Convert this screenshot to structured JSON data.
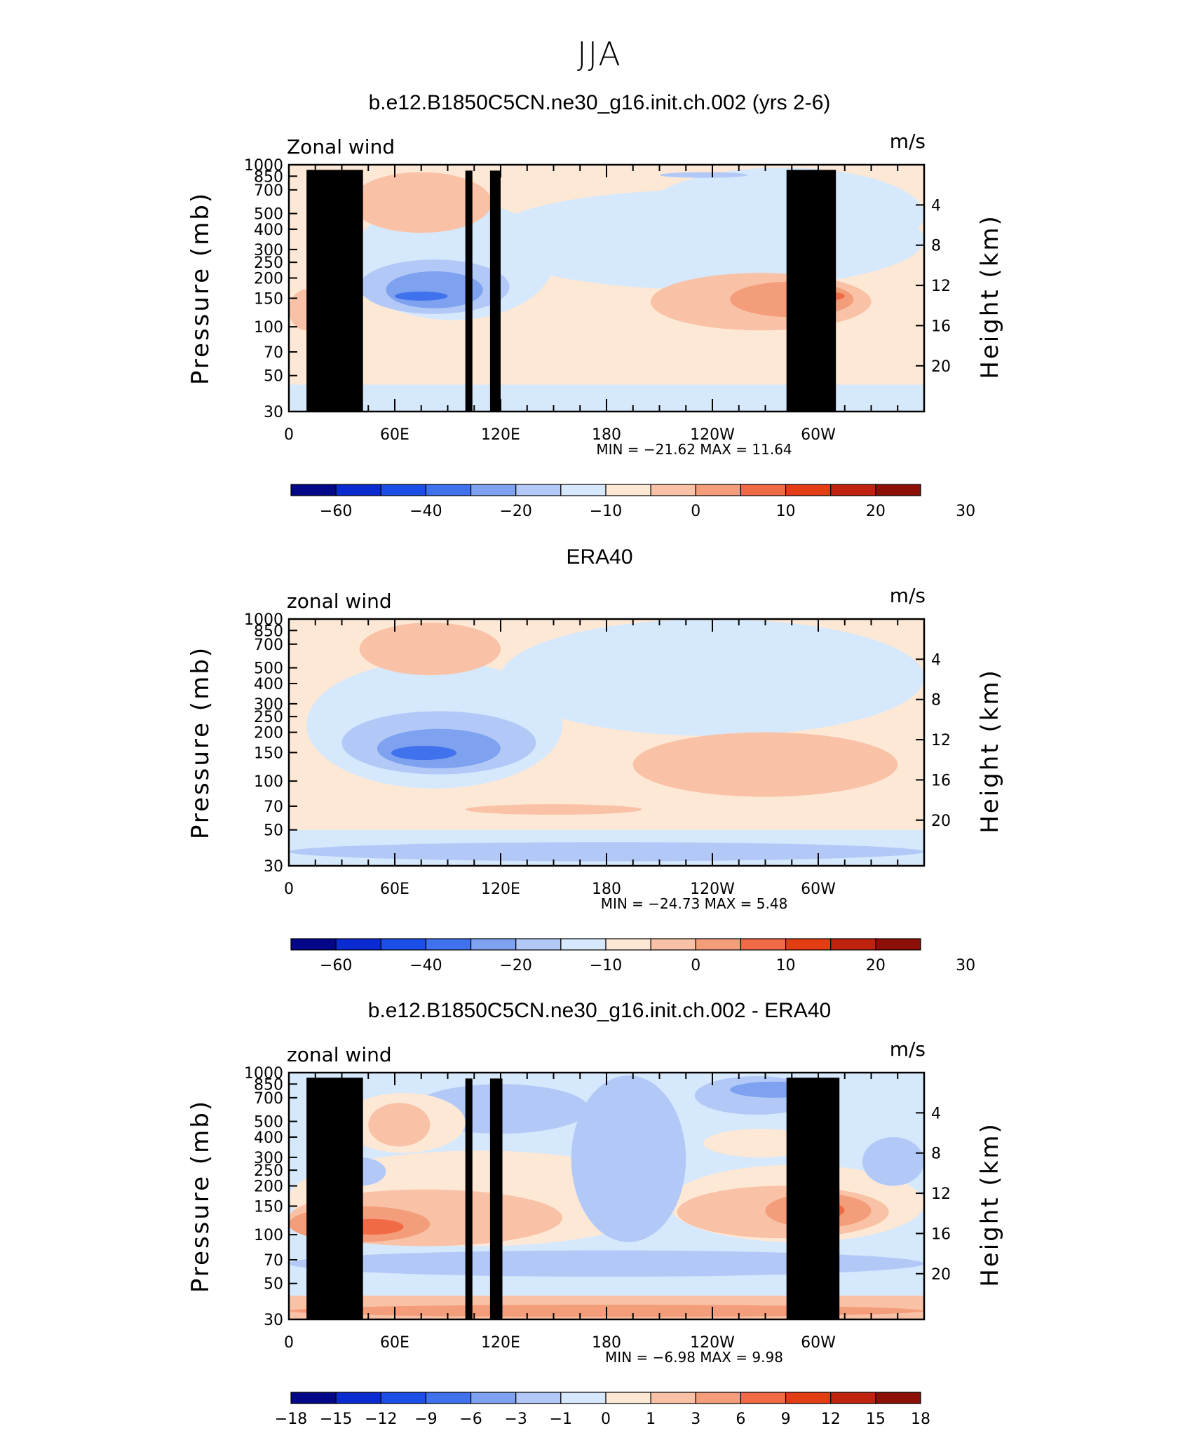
{
  "page": {
    "title": "JJA"
  },
  "chart_data": [
    {
      "type": "heatmap",
      "title": "b.e12.B1850C5CN.ne30_g16.init.ch.002 (yrs 2-6)",
      "left_label": "Zonal wind",
      "units": "m/s",
      "ylabel": "Pressure (mb)",
      "y2label": "Height (km)",
      "y_ticks": [
        "30",
        "50",
        "70",
        "100",
        "150",
        "200",
        "250",
        "300",
        "400",
        "500",
        "700",
        "850",
        "1000"
      ],
      "y2_ticks": [
        "20",
        "16",
        "12",
        "8",
        "4"
      ],
      "x_ticks": [
        "0",
        "60E",
        "120E",
        "180",
        "120W",
        "60W"
      ],
      "stats": "MIN = −21.62   MAX =   11.64",
      "colorbar_labels": [
        "−60",
        "−40",
        "−20",
        "−10",
        "0",
        "10",
        "20",
        "30"
      ],
      "colorbar_colors": [
        "#030788",
        "#0a2bd0",
        "#1c4ee8",
        "#3f72ec",
        "#7fa2f0",
        "#b2c9f8",
        "#d6e8fb",
        "#fde8d6",
        "#f9c2a6",
        "#f49d7b",
        "#f06b45",
        "#e33d13",
        "#c0230d",
        "#8c0f08"
      ],
      "ylim": [
        1000,
        30
      ],
      "xlim": [
        0,
        360
      ]
    },
    {
      "type": "heatmap",
      "title": "ERA40",
      "left_label": "zonal wind",
      "units": "m/s",
      "ylabel": "Pressure (mb)",
      "y2label": "Height (km)",
      "y_ticks": [
        "30",
        "50",
        "70",
        "100",
        "150",
        "200",
        "250",
        "300",
        "400",
        "500",
        "700",
        "850",
        "1000"
      ],
      "y2_ticks": [
        "20",
        "16",
        "12",
        "8",
        "4"
      ],
      "x_ticks": [
        "0",
        "60E",
        "120E",
        "180",
        "120W",
        "60W"
      ],
      "stats": "MIN = −24.73   MAX =    5.48",
      "colorbar_labels": [
        "−60",
        "−40",
        "−20",
        "−10",
        "0",
        "10",
        "20",
        "30"
      ],
      "colorbar_colors": [
        "#030788",
        "#0a2bd0",
        "#1c4ee8",
        "#3f72ec",
        "#7fa2f0",
        "#b2c9f8",
        "#d6e8fb",
        "#fde8d6",
        "#f9c2a6",
        "#f49d7b",
        "#f06b45",
        "#e33d13",
        "#c0230d",
        "#8c0f08"
      ],
      "ylim": [
        1000,
        30
      ],
      "xlim": [
        0,
        360
      ]
    },
    {
      "type": "heatmap",
      "title": "b.e12.B1850C5CN.ne30_g16.init.ch.002 - ERA40",
      "left_label": "zonal wind",
      "units": "m/s",
      "ylabel": "Pressure (mb)",
      "y2label": "Height (km)",
      "y_ticks": [
        "30",
        "50",
        "70",
        "100",
        "150",
        "200",
        "250",
        "300",
        "400",
        "500",
        "700",
        "850",
        "1000"
      ],
      "y2_ticks": [
        "20",
        "16",
        "12",
        "8",
        "4"
      ],
      "x_ticks": [
        "0",
        "60E",
        "120E",
        "180",
        "120W",
        "60W"
      ],
      "stats": "MIN =   −6.98   MAX =    9.98",
      "colorbar_labels": [
        "−18",
        "−15",
        "−12",
        "−9",
        "−6",
        "−3",
        "−1",
        "0",
        "1",
        "3",
        "6",
        "9",
        "12",
        "15",
        "18"
      ],
      "colorbar_colors": [
        "#030788",
        "#0a2bd0",
        "#1c4ee8",
        "#3f72ec",
        "#7fa2f0",
        "#b2c9f8",
        "#d6e8fb",
        "#fde8d6",
        "#f9c2a6",
        "#f49d7b",
        "#f06b45",
        "#e33d13",
        "#c0230d",
        "#8c0f08"
      ],
      "ylim": [
        1000,
        30
      ],
      "xlim": [
        0,
        360
      ]
    }
  ]
}
